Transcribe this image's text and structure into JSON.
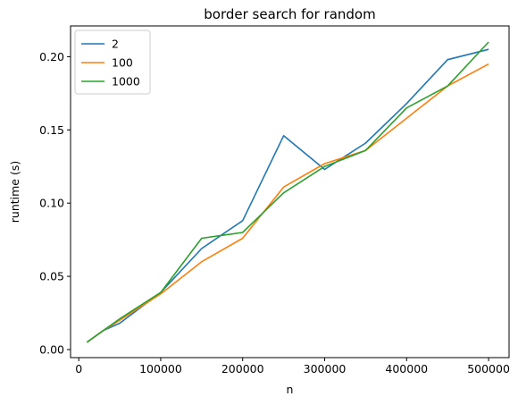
{
  "chart_data": {
    "type": "line",
    "title": "border search for random",
    "xlabel": "n",
    "ylabel": "runtime (s)",
    "xlim": [
      -10000,
      525000
    ],
    "ylim": [
      -0.0055,
      0.221
    ],
    "xticks": [
      0,
      100000,
      200000,
      300000,
      400000,
      500000
    ],
    "xtick_labels": [
      "0",
      "100000",
      "200000",
      "300000",
      "400000",
      "500000"
    ],
    "yticks": [
      0.0,
      0.05,
      0.1,
      0.15,
      0.2
    ],
    "ytick_labels": [
      "0.00",
      "0.05",
      "0.10",
      "0.15",
      "0.20"
    ],
    "grid": false,
    "legend_position": "upper-left",
    "x": [
      10000,
      30000,
      50000,
      100000,
      150000,
      200000,
      250000,
      300000,
      350000,
      400000,
      450000,
      500000
    ],
    "series": [
      {
        "name": "2",
        "color": "#1f77b4",
        "values": [
          0.005,
          0.013,
          0.018,
          0.039,
          0.069,
          0.088,
          0.146,
          0.123,
          0.141,
          0.168,
          0.198,
          0.205
        ]
      },
      {
        "name": "100",
        "color": "#ff7f0e",
        "values": [
          0.005,
          0.013,
          0.02,
          0.038,
          0.06,
          0.076,
          0.111,
          0.127,
          0.136,
          0.158,
          0.18,
          0.195
        ]
      },
      {
        "name": "1000",
        "color": "#2ca02c",
        "values": [
          0.005,
          0.013,
          0.021,
          0.039,
          0.076,
          0.08,
          0.107,
          0.125,
          0.136,
          0.165,
          0.18,
          0.21
        ]
      }
    ]
  }
}
